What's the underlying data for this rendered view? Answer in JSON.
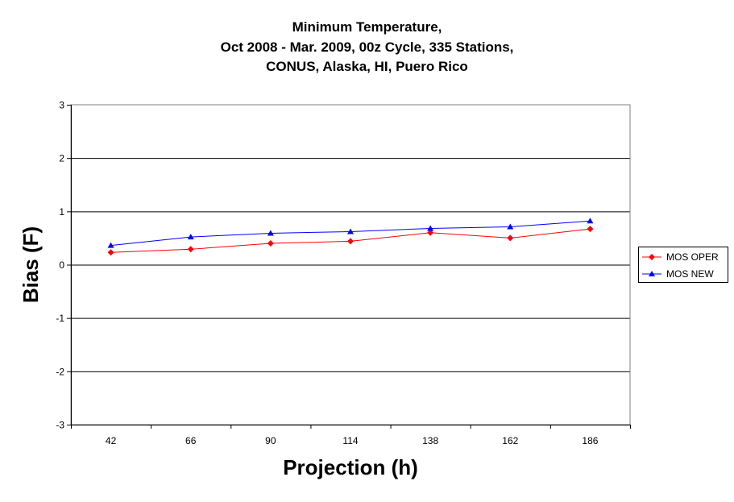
{
  "chart_data": {
    "type": "line",
    "title_lines": [
      "Minimum Temperature,",
      "Oct 2008 - Mar. 2009, 00z Cycle, 335 Stations,",
      "CONUS, Alaska, HI, Puero Rico"
    ],
    "xlabel": "Projection (h)",
    "ylabel": "Bias (F)",
    "categories": [
      "42",
      "66",
      "90",
      "114",
      "138",
      "162",
      "186"
    ],
    "ylim": [
      -3,
      3
    ],
    "yticks": [
      3,
      2,
      1,
      0,
      -1,
      -2,
      -3
    ],
    "grid": true,
    "legend_position": "right",
    "series": [
      {
        "name": "MOS OPER",
        "color": "#ff0000",
        "marker": "diamond",
        "values": [
          0.23,
          0.29,
          0.4,
          0.44,
          0.6,
          0.5,
          0.67
        ]
      },
      {
        "name": "MOS NEW",
        "color": "#0000ff",
        "marker": "triangle",
        "values": [
          0.36,
          0.52,
          0.59,
          0.62,
          0.68,
          0.71,
          0.82
        ]
      }
    ]
  }
}
